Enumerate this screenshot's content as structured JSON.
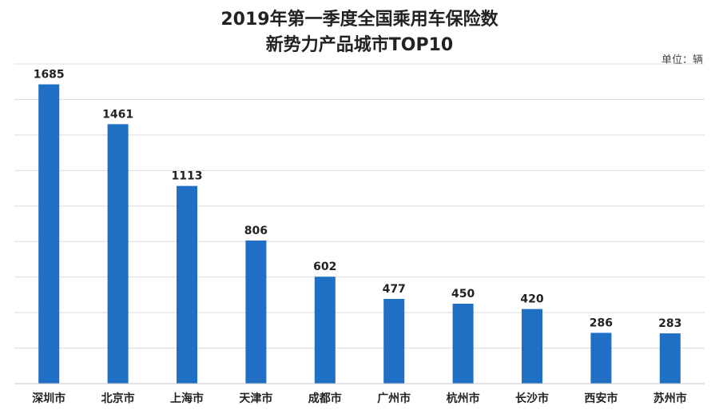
{
  "chart_data": {
    "type": "bar",
    "title": [
      "2019年第一季度全国乘用车保险数",
      "新势力产品城市TOP10"
    ],
    "unit_label": "单位：辆",
    "categories": [
      "深圳市",
      "北京市",
      "上海市",
      "天津市",
      "成都市",
      "广州市",
      "杭州市",
      "长沙市",
      "西安市",
      "苏州市"
    ],
    "values": [
      1685,
      1461,
      1113,
      806,
      602,
      477,
      450,
      420,
      286,
      283
    ],
    "ylim": [
      0,
      1800
    ],
    "grid": true,
    "bar_color": "#1f6fc5"
  }
}
